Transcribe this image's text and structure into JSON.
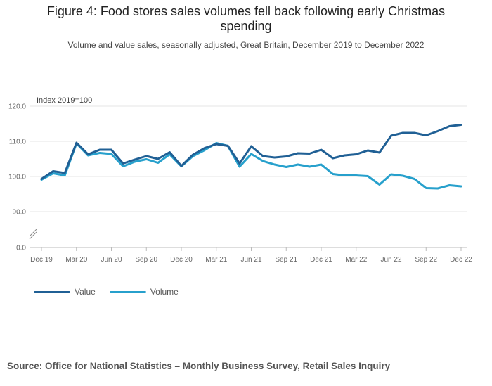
{
  "title_line1": "Figure 4: Food stores sales volumes fell back following early Christmas",
  "title_line2": "spending",
  "subtitle": "Volume and value sales, seasonally adjusted, Great Britain, December 2019 to December 2022",
  "source": "Source: Office for National Statistics – Monthly Business Survey, Retail Sales Inquiry",
  "colors": {
    "value": "#206095",
    "volume": "#27a0cc",
    "grid": "#e6e6e6",
    "axis": "#bbbbbb"
  },
  "chart_data": {
    "type": "line",
    "title": "Figure 4: Food stores sales volumes fell back following early Christmas spending",
    "ylabel": "Index 2019=100",
    "xlabel": "",
    "ylim": [
      0,
      120
    ],
    "axis_break": [
      0,
      90
    ],
    "y_ticks": [
      0,
      90,
      100,
      110,
      120
    ],
    "y_tick_labels": [
      "0.0",
      "90.0",
      "100.0",
      "110.0",
      "120.0"
    ],
    "x_ticks": [
      {
        "index": 0,
        "label": "Dec 19"
      },
      {
        "index": 3,
        "label": "Mar 20"
      },
      {
        "index": 6,
        "label": "Jun 20"
      },
      {
        "index": 9,
        "label": "Sep 20"
      },
      {
        "index": 12,
        "label": "Dec 20"
      },
      {
        "index": 15,
        "label": "Mar 21"
      },
      {
        "index": 18,
        "label": "Jun 21"
      },
      {
        "index": 21,
        "label": "Sep 21"
      },
      {
        "index": 24,
        "label": "Dec 21"
      },
      {
        "index": 27,
        "label": "Mar 22"
      },
      {
        "index": 30,
        "label": "Jun 22"
      },
      {
        "index": 33,
        "label": "Sep 22"
      },
      {
        "index": 36,
        "label": "Dec 22"
      }
    ],
    "legend_position": "bottom-left",
    "series": [
      {
        "name": "Value",
        "values": [
          99.3,
          101.5,
          101.0,
          109.6,
          106.3,
          107.6,
          107.6,
          103.7,
          104.8,
          105.8,
          105.0,
          106.9,
          103.0,
          106.2,
          108.1,
          109.2,
          108.7,
          103.7,
          108.6,
          105.8,
          105.4,
          105.7,
          106.6,
          106.5,
          107.6,
          105.2,
          106.0,
          106.3,
          107.4,
          106.8,
          111.6,
          112.4,
          112.4,
          111.7,
          112.9,
          114.3,
          114.7
        ]
      },
      {
        "name": "Volume",
        "values": [
          99.1,
          100.9,
          100.3,
          109.4,
          106.0,
          106.7,
          106.4,
          102.9,
          104.2,
          104.9,
          103.9,
          106.3,
          102.9,
          105.8,
          107.5,
          109.5,
          108.7,
          102.8,
          106.4,
          104.4,
          103.4,
          102.7,
          103.4,
          102.8,
          103.4,
          100.7,
          100.3,
          100.3,
          100.1,
          97.7,
          100.6,
          100.2,
          99.3,
          96.7,
          96.6,
          97.5,
          97.2
        ]
      }
    ]
  }
}
